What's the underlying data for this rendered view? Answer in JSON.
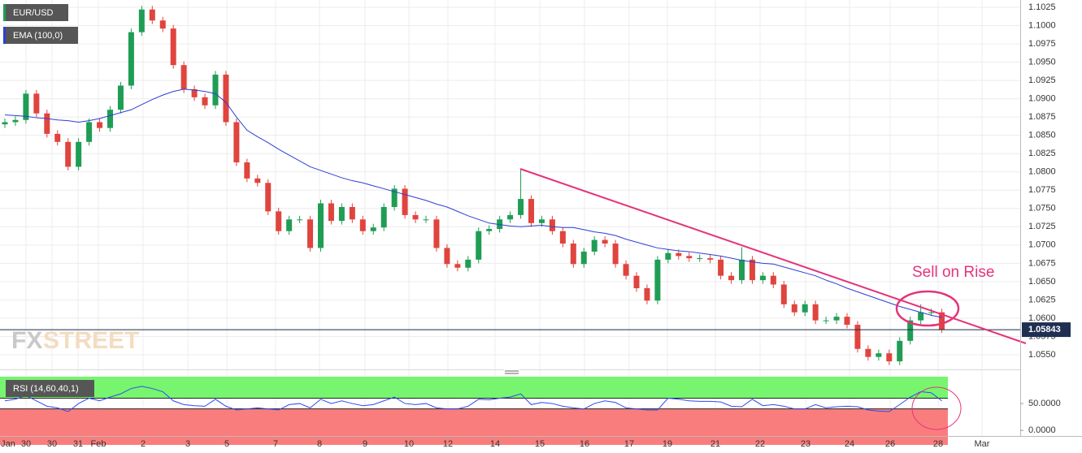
{
  "chart_data": [
    {
      "type": "candlestick",
      "title": "EUR/USD",
      "up_color": "#1f9d55",
      "down_color": "#e0443e",
      "ohlc": [
        [
          1.0865,
          1.0873,
          1.086,
          1.0868
        ],
        [
          1.0868,
          1.0876,
          1.0863,
          1.0871
        ],
        [
          1.0871,
          1.0912,
          1.0866,
          1.0907
        ],
        [
          1.0907,
          1.0912,
          1.0875,
          1.088
        ],
        [
          1.088,
          1.0885,
          1.0847,
          1.0852
        ],
        [
          1.0852,
          1.0857,
          1.0836,
          1.0841
        ],
        [
          1.0841,
          1.0846,
          1.0802,
          1.0807
        ],
        [
          1.0807,
          1.0846,
          1.0802,
          1.0841
        ],
        [
          1.0841,
          1.0873,
          1.0836,
          1.0868
        ],
        [
          1.0868,
          1.0873,
          1.0855,
          1.086
        ],
        [
          1.086,
          1.089,
          1.0855,
          1.0885
        ],
        [
          1.0885,
          1.0923,
          1.088,
          1.0918
        ],
        [
          1.0918,
          1.0996,
          1.0913,
          1.0991
        ],
        [
          1.0991,
          1.1027,
          1.0986,
          1.1022
        ],
        [
          1.1022,
          1.1027,
          1.1002,
          1.1007
        ],
        [
          1.1007,
          1.1012,
          1.0991,
          1.0996
        ],
        [
          1.0996,
          1.1001,
          1.0941,
          1.0946
        ],
        [
          1.0946,
          1.0951,
          1.0908,
          1.0913
        ],
        [
          1.0913,
          1.0918,
          1.0897,
          1.0902
        ],
        [
          1.0902,
          1.0907,
          1.0886,
          1.0891
        ],
        [
          1.0891,
          1.0938,
          1.0886,
          1.0933
        ],
        [
          1.0933,
          1.0938,
          1.0863,
          1.0868
        ],
        [
          1.0868,
          1.0873,
          1.0808,
          1.0813
        ],
        [
          1.0813,
          1.0818,
          1.0786,
          1.0791
        ],
        [
          1.0791,
          1.0796,
          1.078,
          1.0785
        ],
        [
          1.0785,
          1.079,
          1.0741,
          1.0746
        ],
        [
          1.0746,
          1.0751,
          1.0714,
          1.0719
        ],
        [
          1.0719,
          1.074,
          1.0714,
          1.0735
        ],
        [
          1.0735,
          1.074,
          1.073,
          1.0735
        ],
        [
          1.0735,
          1.074,
          1.0691,
          1.0696
        ],
        [
          1.0696,
          1.0762,
          1.0691,
          1.0757
        ],
        [
          1.0757,
          1.0762,
          1.0728,
          1.0733
        ],
        [
          1.0733,
          1.0757,
          1.0728,
          1.0752
        ],
        [
          1.0752,
          1.0757,
          1.073,
          1.0735
        ],
        [
          1.0735,
          1.074,
          1.0714,
          1.0719
        ],
        [
          1.0719,
          1.0729,
          1.0714,
          1.0724
        ],
        [
          1.0724,
          1.0757,
          1.0719,
          1.0752
        ],
        [
          1.0752,
          1.0782,
          1.0747,
          1.0777
        ],
        [
          1.0777,
          1.0782,
          1.0736,
          1.0741
        ],
        [
          1.0741,
          1.0746,
          1.073,
          1.0735
        ],
        [
          1.0735,
          1.074,
          1.073,
          1.0735
        ],
        [
          1.0735,
          1.074,
          1.0691,
          1.0696
        ],
        [
          1.0696,
          1.0701,
          1.0669,
          1.0674
        ],
        [
          1.0674,
          1.0679,
          1.0664,
          1.0669
        ],
        [
          1.0669,
          1.0685,
          1.0664,
          1.068
        ],
        [
          1.068,
          1.0724,
          1.0675,
          1.0719
        ],
        [
          1.0719,
          1.0727,
          1.0714,
          1.0722
        ],
        [
          1.0722,
          1.074,
          1.0717,
          1.0735
        ],
        [
          1.0735,
          1.0746,
          1.073,
          1.0741
        ],
        [
          1.0741,
          1.0803,
          1.0736,
          1.0763
        ],
        [
          1.0763,
          1.0768,
          1.0725,
          1.073
        ],
        [
          1.073,
          1.074,
          1.0725,
          1.0735
        ],
        [
          1.0735,
          1.074,
          1.0714,
          1.0719
        ],
        [
          1.0719,
          1.0724,
          1.0697,
          1.0702
        ],
        [
          1.0702,
          1.0707,
          1.0669,
          1.0674
        ],
        [
          1.0674,
          1.0696,
          1.0669,
          1.0691
        ],
        [
          1.0691,
          1.0712,
          1.0686,
          1.0707
        ],
        [
          1.0707,
          1.0712,
          1.0697,
          1.0702
        ],
        [
          1.0702,
          1.0707,
          1.0669,
          1.0674
        ],
        [
          1.0674,
          1.0679,
          1.0653,
          1.0658
        ],
        [
          1.0658,
          1.0663,
          1.0636,
          1.0641
        ],
        [
          1.0641,
          1.0646,
          1.0619,
          1.0624
        ],
        [
          1.0624,
          1.0685,
          1.0619,
          1.068
        ],
        [
          1.068,
          1.0694,
          1.0675,
          1.0689
        ],
        [
          1.0689,
          1.0694,
          1.068,
          1.0685
        ],
        [
          1.0685,
          1.069,
          1.0677,
          1.0682
        ],
        [
          1.0682,
          1.0687,
          1.0677,
          1.0682
        ],
        [
          1.0682,
          1.0687,
          1.0675,
          1.068
        ],
        [
          1.068,
          1.0685,
          1.0653,
          1.0658
        ],
        [
          1.0658,
          1.0663,
          1.0647,
          1.0652
        ],
        [
          1.0652,
          1.0697,
          1.0647,
          1.068
        ],
        [
          1.068,
          1.0685,
          1.0647,
          1.0652
        ],
        [
          1.0652,
          1.0663,
          1.0647,
          1.0658
        ],
        [
          1.0658,
          1.0663,
          1.0641,
          1.0646
        ],
        [
          1.0646,
          1.0651,
          1.0614,
          1.0619
        ],
        [
          1.0619,
          1.0624,
          1.0603,
          1.0608
        ],
        [
          1.0608,
          1.0624,
          1.0603,
          1.0619
        ],
        [
          1.0619,
          1.0624,
          1.0592,
          1.0597
        ],
        [
          1.0597,
          1.0602,
          1.0592,
          1.0597
        ],
        [
          1.0597,
          1.0607,
          1.0592,
          1.0602
        ],
        [
          1.0602,
          1.0607,
          1.0586,
          1.0591
        ],
        [
          1.0591,
          1.0596,
          1.0553,
          1.0558
        ],
        [
          1.0558,
          1.0563,
          1.0542,
          1.0547
        ],
        [
          1.0547,
          1.0557,
          1.0542,
          1.0552
        ],
        [
          1.0552,
          1.0557,
          1.0536,
          1.0541
        ],
        [
          1.0541,
          1.0574,
          1.0536,
          1.0569
        ],
        [
          1.0569,
          1.0602,
          1.0564,
          1.0597
        ],
        [
          1.0597,
          1.0619,
          1.0592,
          1.0608
        ],
        [
          1.0608,
          1.0613,
          1.0603,
          1.0608
        ],
        [
          1.0608,
          1.0613,
          1.058,
          1.05843
        ]
      ],
      "ema": {
        "name": "EMA (100,0)",
        "color": "#2b3fd6",
        "values": [
          1.0878,
          1.0877,
          1.0876,
          1.0874,
          1.0873,
          1.0871,
          1.087,
          1.0868,
          1.087,
          1.0873,
          1.0877,
          1.0881,
          1.0885,
          1.0892,
          1.0899,
          1.0905,
          1.091,
          1.0913,
          1.0912,
          1.091,
          1.0907,
          1.0895,
          1.0875,
          1.0857,
          1.0848,
          1.084,
          1.0831,
          1.0823,
          1.0815,
          1.0807,
          1.0802,
          1.0797,
          1.0792,
          1.0788,
          1.0785,
          1.0781,
          1.0777,
          1.0773,
          1.0769,
          1.0765,
          1.0761,
          1.0756,
          1.0752,
          1.0746,
          1.074,
          1.0735,
          1.073,
          1.0728,
          1.0726,
          1.0725,
          1.0726,
          1.0727,
          1.0725,
          1.0724,
          1.0724,
          1.0721,
          1.0718,
          1.0716,
          1.0713,
          1.0708,
          1.0704,
          1.07,
          1.0696,
          1.0694,
          1.0692,
          1.0691,
          1.0689,
          1.0687,
          1.0685,
          1.0682,
          1.0679,
          1.0677,
          1.0675,
          1.0674,
          1.067,
          1.0666,
          1.0662,
          1.0658,
          1.0652,
          1.0647,
          1.0641,
          1.0636,
          1.0631,
          1.0626,
          1.0621,
          1.0616,
          1.0612,
          1.0608,
          1.0604,
          1.0601
        ]
      },
      "last_price": 1.05843,
      "ylim": [
        1.053,
        1.1035
      ],
      "yticks": [
        1.1025,
        {
          "value": 1.1,
          "label": "1.1000"
        },
        1.0975,
        {
          "value": 1.095,
          "label": "1.0950"
        },
        1.0925,
        {
          "value": 1.09,
          "label": "1.0900"
        },
        1.0875,
        {
          "value": 1.085,
          "label": "1.0850"
        },
        1.0825,
        {
          "value": 1.08,
          "label": "1.0800"
        },
        1.0775,
        {
          "value": 1.075,
          "label": "1.0750"
        },
        1.0725,
        {
          "value": 1.07,
          "label": "1.0700"
        },
        1.0675,
        {
          "value": 1.065,
          "label": "1.0650"
        },
        1.0625,
        {
          "value": 1.06,
          "label": "1.0600"
        },
        1.0575,
        {
          "value": 1.055,
          "label": "1.0550"
        }
      ],
      "x_labels": [
        "Jan",
        "30",
        "30",
        "31",
        "Feb",
        "2",
        "3",
        "5",
        "7",
        "8",
        "9",
        "10",
        "12",
        "14",
        "15",
        "16",
        "17",
        "19",
        "21",
        "22",
        "23",
        "24",
        "26",
        "28",
        "Mar"
      ],
      "annotation": "Sell on Rise",
      "watermark": [
        "FX",
        "STREET"
      ],
      "grid": true
    },
    {
      "type": "line",
      "title": "RSI (14,60,40,1)",
      "color": "#2a4cf0",
      "values": [
        55,
        58,
        65,
        55,
        45,
        42,
        35,
        50,
        60,
        55,
        62,
        68,
        78,
        82,
        78,
        72,
        55,
        48,
        46,
        45,
        58,
        45,
        38,
        40,
        42,
        40,
        38,
        48,
        50,
        42,
        58,
        50,
        55,
        50,
        46,
        48,
        55,
        62,
        50,
        48,
        50,
        42,
        40,
        40,
        45,
        58,
        57,
        60,
        62,
        68,
        48,
        52,
        50,
        45,
        42,
        40,
        50,
        55,
        52,
        42,
        40,
        38,
        38,
        60,
        58,
        55,
        54,
        54,
        53,
        45,
        44,
        58,
        46,
        48,
        45,
        40,
        40,
        48,
        42,
        44,
        45,
        44,
        38,
        36,
        35,
        48,
        62,
        72,
        70,
        55
      ],
      "upper": 60,
      "lower": 40,
      "upper_color": "#77f56f",
      "lower_color": "#fa7d7d",
      "ylim": [
        -27,
        100
      ],
      "yticks": [
        {
          "value": 50,
          "label": "50.0000"
        },
        {
          "value": 0,
          "label": "0.0000"
        }
      ]
    }
  ]
}
